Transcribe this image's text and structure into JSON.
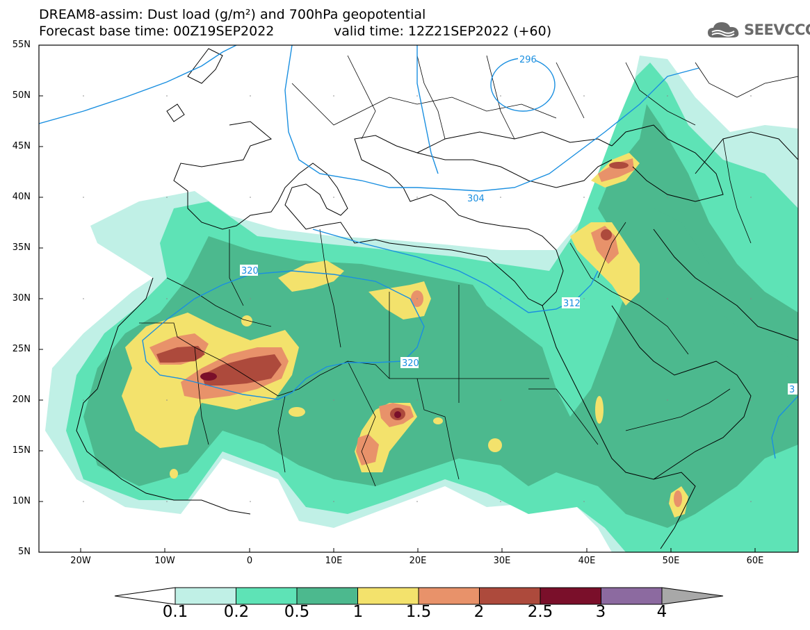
{
  "title": {
    "line1": "DREAM8-assim: Dust load (g/m²) and 700hPa geopotential",
    "line2": "Forecast base time: 00Z19SEP2022",
    "valid": "valid time: 12Z21SEP2022 (+60)"
  },
  "logo": {
    "text": "SEEVCCC",
    "icon": "cloud-icon"
  },
  "map": {
    "lat_labels": [
      "55N",
      "50N",
      "45N",
      "40N",
      "35N",
      "30N",
      "25N",
      "20N",
      "15N",
      "10N",
      "5N"
    ],
    "lon_labels": [
      "20W",
      "10W",
      "0",
      "10E",
      "20E",
      "30E",
      "40E",
      "50E",
      "60E"
    ],
    "contour_labels": [
      "296",
      "304",
      "312",
      "320",
      "320",
      "3"
    ]
  },
  "colorbar": {
    "labels": [
      "0.1",
      "0.2",
      "0.5",
      "1",
      "1.5",
      "2",
      "2.5",
      "3",
      "4"
    ],
    "colors": [
      "#c0f0e6",
      "#5ee3b6",
      "#4cb98e",
      "#f3e26c",
      "#e8926a",
      "#ad4a3c",
      "#7a0f2a",
      "#8c6aa0",
      "#a8a8a8"
    ]
  },
  "colors": {
    "light": "#c0f0e6",
    "mid": "#5ee3b6",
    "dark": "#4cb98e",
    "yellow": "#f3e26c",
    "orange": "#e8926a",
    "brown": "#ad4a3c",
    "maroon": "#7a0f2a",
    "contour": "#1a8fe0"
  }
}
